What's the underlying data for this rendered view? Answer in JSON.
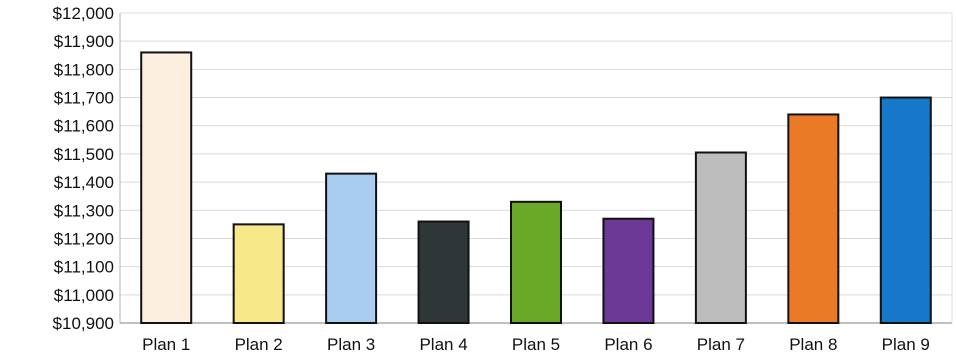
{
  "chart_data": {
    "type": "bar",
    "title": "",
    "xlabel": "",
    "ylabel": "",
    "categories": [
      "Plan 1",
      "Plan 2",
      "Plan 3",
      "Plan 4",
      "Plan 5",
      "Plan 6",
      "Plan 7",
      "Plan 8",
      "Plan 9"
    ],
    "values": [
      11860,
      11250,
      11430,
      11260,
      11330,
      11270,
      11505,
      11640,
      11700
    ],
    "ylim": [
      10900,
      12000
    ],
    "yticks": [
      10900,
      11000,
      11100,
      11200,
      11300,
      11400,
      11500,
      11600,
      11700,
      11800,
      11900,
      12000
    ],
    "ytick_labels": [
      "$10,900",
      "$11,000",
      "$11,100",
      "$11,200",
      "$11,300",
      "$11,400",
      "$11,500",
      "$11,600",
      "$11,700",
      "$11,800",
      "$11,900",
      "$12,000"
    ],
    "grid": true,
    "legend": "none",
    "bar_colors": [
      "#fcefe0",
      "#f7e88a",
      "#a9cdf0",
      "#2f3638",
      "#6aa828",
      "#6a3a96",
      "#bdbdbd",
      "#eb7a27",
      "#1777c8"
    ],
    "bar_edge_color": "#111111",
    "grid_color": "#d9d9d9"
  }
}
